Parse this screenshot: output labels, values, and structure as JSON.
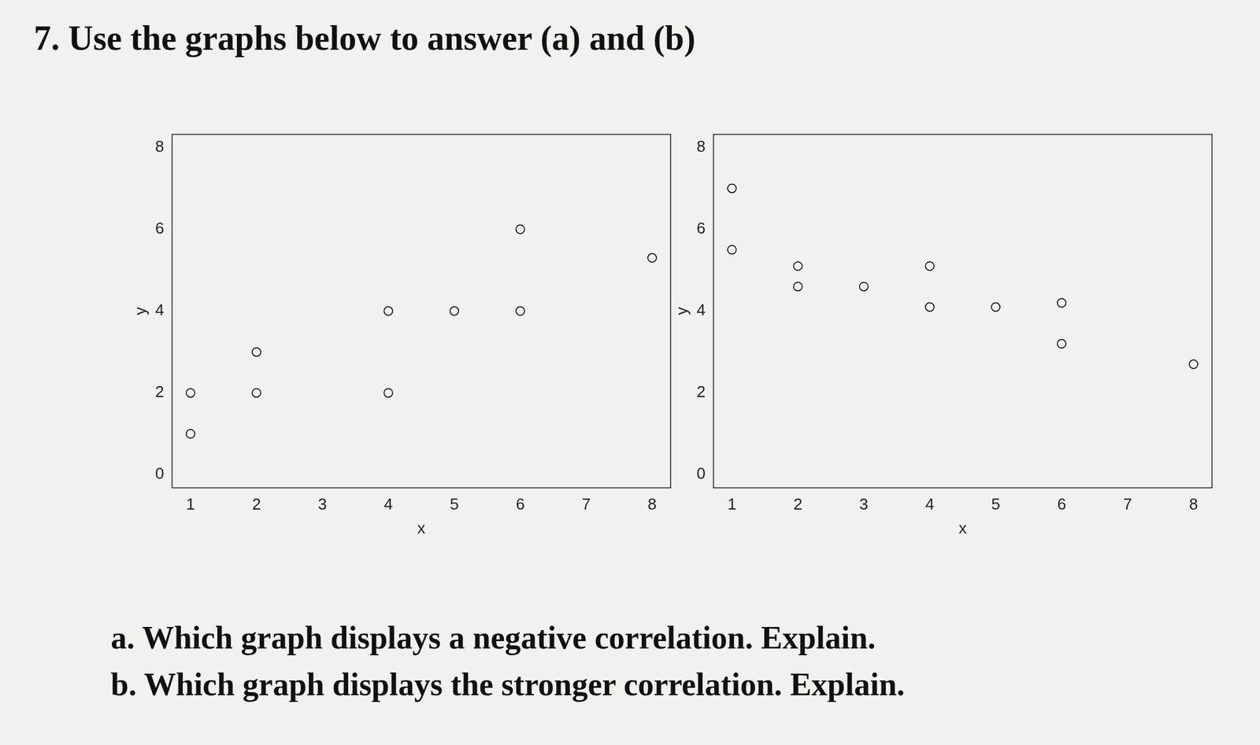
{
  "title": "7. Use the graphs below to answer (a) and (b)",
  "questions": [
    "a. Which graph displays a negative correlation.  Explain.",
    "b. Which graph displays the stronger correlation.  Explain."
  ],
  "chart_data": [
    {
      "type": "scatter",
      "x_label": "x",
      "y_label": "y",
      "x": [
        1,
        1,
        2,
        2,
        4,
        4,
        5,
        6,
        6,
        8
      ],
      "values": [
        2,
        1,
        3,
        2,
        4,
        2,
        4,
        6,
        4,
        5.3
      ],
      "xlim": [
        0.72,
        8.28
      ],
      "xticks": [
        1,
        2,
        3,
        4,
        5,
        6,
        7,
        8
      ],
      "ylim": [
        -0.32,
        8.32
      ],
      "yticks": [
        0,
        2,
        4,
        6,
        8
      ],
      "grid": false,
      "marker": "circle",
      "color": "#000000"
    },
    {
      "type": "scatter",
      "x_label": "x",
      "y_label": "y",
      "x": [
        1,
        1,
        2,
        2,
        3,
        4,
        4,
        5,
        6,
        6,
        8
      ],
      "values": [
        7,
        5.5,
        5.1,
        4.6,
        4.6,
        5.1,
        4.1,
        4.1,
        4.2,
        3.2,
        2.7
      ],
      "xlim": [
        0.72,
        8.28
      ],
      "xticks": [
        1,
        2,
        3,
        4,
        5,
        6,
        7,
        8
      ],
      "ylim": [
        -0.32,
        8.32
      ],
      "yticks": [
        0,
        2,
        4,
        6,
        8
      ],
      "grid": false,
      "marker": "circle",
      "color": "#000000"
    }
  ]
}
